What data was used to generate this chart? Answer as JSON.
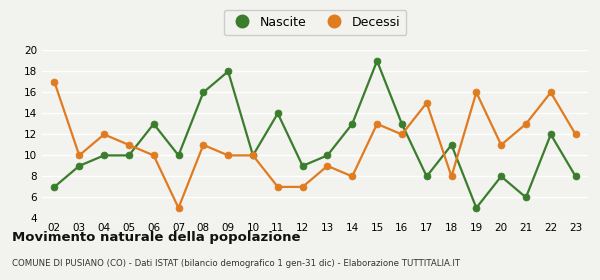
{
  "years": [
    "02",
    "03",
    "04",
    "05",
    "06",
    "07",
    "08",
    "09",
    "10",
    "11",
    "12",
    "13",
    "14",
    "15",
    "16",
    "17",
    "18",
    "19",
    "20",
    "21",
    "22",
    "23"
  ],
  "nascite": [
    7,
    9,
    10,
    10,
    13,
    10,
    16,
    18,
    10,
    14,
    9,
    10,
    13,
    19,
    13,
    8,
    11,
    5,
    8,
    6,
    12,
    8
  ],
  "decessi": [
    17,
    10,
    12,
    11,
    10,
    5,
    11,
    10,
    10,
    7,
    7,
    9,
    8,
    13,
    12,
    15,
    8,
    16,
    11,
    13,
    16,
    12
  ],
  "nascite_color": "#3a7d2c",
  "decessi_color": "#e07b20",
  "ylim": [
    4,
    20
  ],
  "yticks": [
    4,
    6,
    8,
    10,
    12,
    14,
    16,
    18,
    20
  ],
  "title": "Movimento naturale della popolazione",
  "subtitle": "COMUNE DI PUSIANO (CO) - Dati ISTAT (bilancio demografico 1 gen-31 dic) - Elaborazione TUTTITALIA.IT",
  "legend_nascite": "Nascite",
  "legend_decessi": "Decessi",
  "bg_color": "#f2f2ee",
  "marker_size": 5,
  "linewidth": 1.6
}
